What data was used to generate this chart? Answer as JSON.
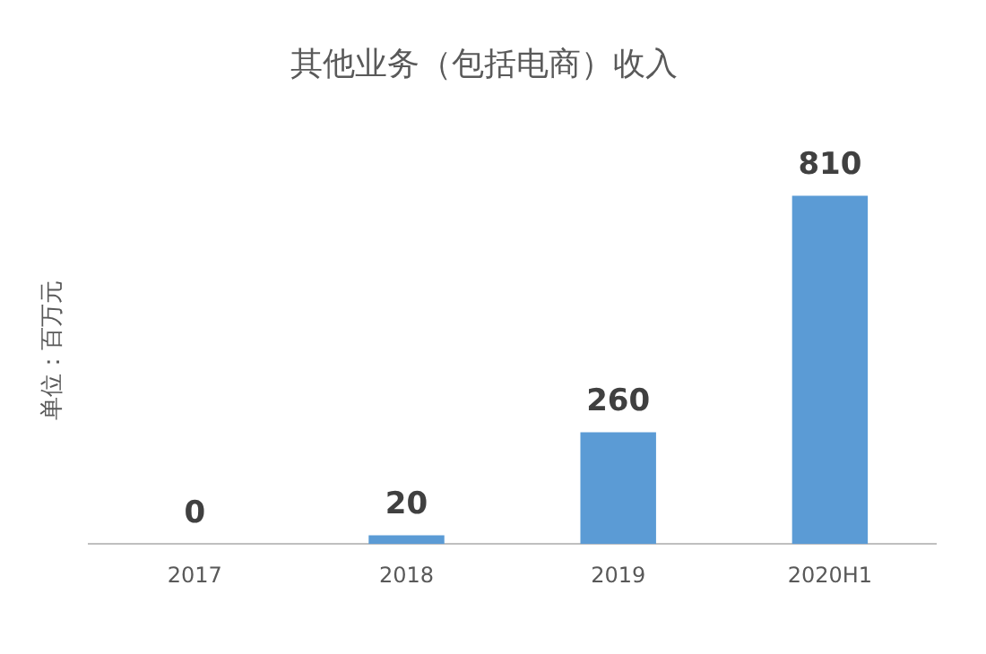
{
  "chart_data": {
    "type": "bar",
    "title": "其他业务（包括电商）收入",
    "ylabel": "单位：百万元",
    "categories": [
      "2017",
      "2018",
      "2019",
      "2020H1"
    ],
    "values": [
      0,
      20,
      260,
      810
    ],
    "color": "#5b9bd5",
    "data_labels": true,
    "grid": false,
    "legend": false
  }
}
